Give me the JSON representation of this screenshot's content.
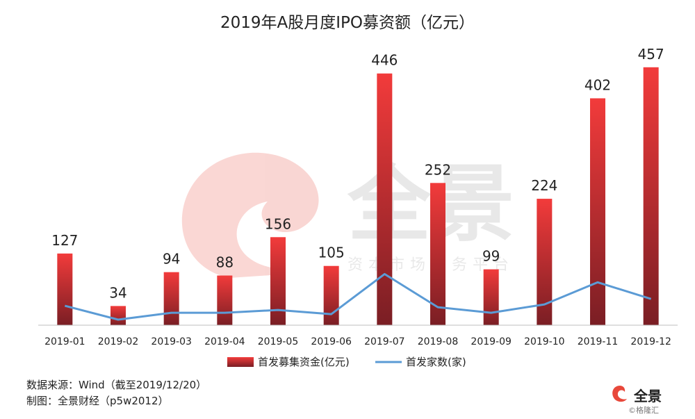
{
  "chart_data": {
    "type": "bar+line",
    "title": "2019年A股月度IPO募资额（亿元）",
    "categories": [
      "2019-01",
      "2019-02",
      "2019-03",
      "2019-04",
      "2019-05",
      "2019-06",
      "2019-07",
      "2019-08",
      "2019-09",
      "2019-10",
      "2019-11",
      "2019-12"
    ],
    "series": [
      {
        "name": "首发募集资金(亿元)",
        "kind": "bar",
        "values": [
          127,
          34,
          94,
          88,
          156,
          105,
          446,
          252,
          99,
          224,
          402,
          457
        ]
      },
      {
        "name": "首发家数(家)",
        "kind": "line",
        "values": [
          14,
          4,
          9,
          9,
          11,
          8,
          37,
          13,
          9,
          15,
          31,
          19
        ]
      }
    ],
    "bar_ylim": [
      0,
      490
    ],
    "line_ylim": [
      0,
      200
    ],
    "legend_position": "bottom",
    "colors": {
      "bar_top": "#f23b3b",
      "bar_bottom": "#7a1e24",
      "line": "#5b9bd5",
      "axis": "#bfbfbf"
    },
    "watermark": {
      "brand": "全景",
      "tagline": "资本市场服务平台"
    }
  },
  "footer": {
    "source": "数据来源：Wind（截至2019/12/20）",
    "maker": "制图：全景财经（p5w2012）"
  },
  "logo": {
    "name": "全景",
    "credit": "©格隆汇"
  }
}
